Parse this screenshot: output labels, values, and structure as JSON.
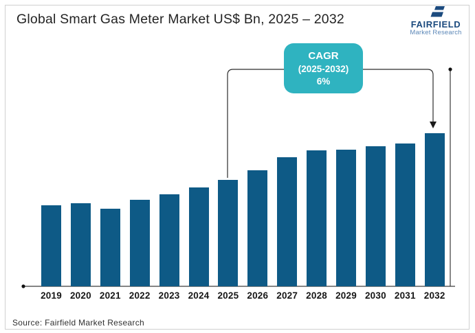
{
  "header": {
    "title": "Global Smart Gas Meter Market US$ Bn, 2025 – 2032",
    "logo": {
      "brand": "FAIRFIELD",
      "tagline": "Market Research"
    }
  },
  "annotation": {
    "line1": "CAGR",
    "line2": "(2025-2032)",
    "line3": "6%"
  },
  "footer": {
    "source": "Source: Fairfield Market Research"
  },
  "colors": {
    "bar": "#0e5a86",
    "annotation_teal": "#2fb3c0",
    "logo_navy": "#1b4a7e",
    "logo_light_blue": "#5b87b7",
    "axis_line": "#3a3a3a"
  },
  "chart_data": {
    "type": "bar",
    "title": "Global Smart Gas Meter Market US$ Bn, 2025 – 2032",
    "categories": [
      "2019",
      "2020",
      "2021",
      "2022",
      "2023",
      "2024",
      "2025",
      "2026",
      "2027",
      "2028",
      "2029",
      "2030",
      "2031",
      "2032"
    ],
    "values": [
      76.5,
      78.5,
      73.3,
      81.7,
      86.8,
      93.3,
      100,
      109,
      121.5,
      128,
      128.6,
      131.6,
      134.2,
      144.1
    ],
    "value_note": "y-axis is unlabeled in source image; values are relative index with 2025 = 100, estimated from bar heights",
    "xlabel": "",
    "ylabel": "US$ Bn",
    "grid": false,
    "legend": false,
    "bar_color": "#0e5a86",
    "annotation": "CAGR (2025-2032) 6%",
    "annotation_range": [
      "2025",
      "2032"
    ]
  }
}
